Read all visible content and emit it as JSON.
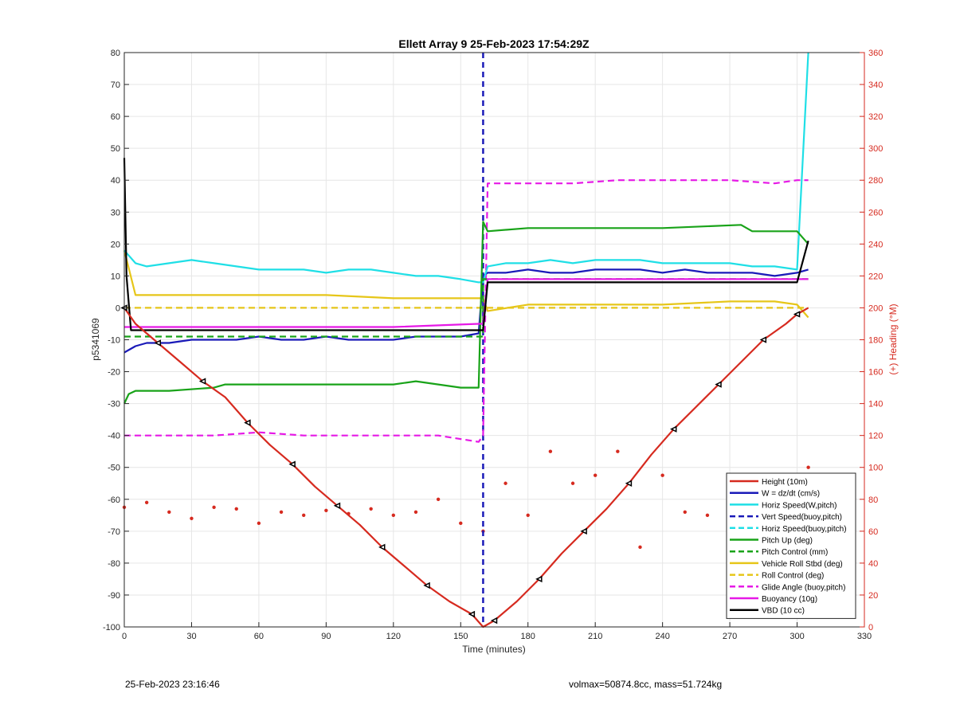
{
  "chart_data": {
    "type": "line",
    "title": "Ellett Array 9 25-Feb-2023 17:54:29Z",
    "xlabel": "Time (minutes)",
    "ylabel": "p5341069",
    "y2label": "(+) Heading (°M)",
    "xlim": [
      0,
      330
    ],
    "ylim": [
      -100,
      80
    ],
    "y2lim": [
      0,
      360
    ],
    "xticks": [
      "0",
      "30",
      "60",
      "90",
      "120",
      "150",
      "180",
      "210",
      "240",
      "270",
      "300",
      "330"
    ],
    "yticks": [
      "-100",
      "-90",
      "-80",
      "-70",
      "-60",
      "-50",
      "-40",
      "-30",
      "-20",
      "-10",
      "0",
      "10",
      "20",
      "30",
      "40",
      "50",
      "60",
      "70",
      "80"
    ],
    "y2ticks": [
      "0",
      "20",
      "40",
      "60",
      "80",
      "100",
      "120",
      "140",
      "160",
      "180",
      "200",
      "220",
      "240",
      "260",
      "280",
      "300",
      "320",
      "340",
      "360"
    ],
    "grid": true,
    "legend_position": "bottom-right",
    "apogee_minutes": 160,
    "colors": {
      "height": "#d62a1f",
      "w": "#1a1ab8",
      "horiz": "#1fdfe6",
      "pitch": "#19a319",
      "roll": "#e6c619",
      "glide": "#e619e6",
      "vbd": "#000000",
      "heading_axis": "#d62a1f"
    },
    "series": [
      {
        "name": "Height (10m)",
        "color": "#d62a1f",
        "style": "solid",
        "x": [
          0,
          5,
          15,
          25,
          35,
          45,
          55,
          65,
          75,
          85,
          95,
          105,
          115,
          125,
          135,
          145,
          155,
          160,
          165,
          175,
          185,
          195,
          205,
          215,
          225,
          235,
          245,
          255,
          265,
          275,
          285,
          295,
          300,
          305
        ],
        "y": [
          0,
          -5,
          -11,
          -17,
          -23,
          -28,
          -36,
          -43,
          -49,
          -56,
          -62,
          -68,
          -75,
          -81,
          -87,
          -92,
          -96,
          -100,
          -98,
          -92,
          -85,
          -77,
          -70,
          -63,
          -55,
          -46,
          -38,
          -31,
          -24,
          -17,
          -10,
          -5,
          -2,
          0
        ]
      },
      {
        "name": "W = dz/dt (cm/s)",
        "color": "#1a1ab8",
        "style": "solid",
        "x": [
          0,
          5,
          10,
          20,
          30,
          40,
          50,
          60,
          70,
          80,
          90,
          100,
          110,
          120,
          130,
          140,
          150,
          158,
          160,
          162,
          170,
          180,
          190,
          200,
          210,
          220,
          230,
          240,
          250,
          260,
          270,
          280,
          290,
          300,
          305
        ],
        "y": [
          -14,
          -12,
          -11,
          -11,
          -10,
          -10,
          -10,
          -9,
          -10,
          -10,
          -9,
          -10,
          -10,
          -10,
          -9,
          -9,
          -9,
          -8,
          10,
          11,
          11,
          12,
          11,
          11,
          12,
          12,
          12,
          11,
          12,
          11,
          11,
          11,
          10,
          11,
          12
        ]
      },
      {
        "name": "Horiz Speed(W,pitch)",
        "color": "#1fdfe6",
        "style": "solid",
        "x": [
          0,
          5,
          10,
          20,
          30,
          40,
          50,
          60,
          70,
          80,
          90,
          100,
          110,
          120,
          130,
          140,
          150,
          158,
          160,
          162,
          170,
          180,
          190,
          200,
          210,
          220,
          230,
          240,
          250,
          260,
          270,
          280,
          290,
          300,
          305
        ],
        "y": [
          18,
          14,
          13,
          14,
          15,
          14,
          13,
          12,
          12,
          12,
          11,
          12,
          12,
          11,
          10,
          10,
          9,
          8,
          8,
          13,
          14,
          14,
          15,
          14,
          15,
          15,
          15,
          14,
          14,
          14,
          14,
          13,
          13,
          12,
          80
        ]
      },
      {
        "name": "Vert Speed(buoy,pitch)",
        "color": "#1a1ab8",
        "style": "dashed",
        "x": [],
        "y": []
      },
      {
        "name": "Horiz Speed(buoy,pitch)",
        "color": "#1fdfe6",
        "style": "dashed",
        "x": [],
        "y": []
      },
      {
        "name": "Pitch Up (deg)",
        "color": "#19a319",
        "style": "solid",
        "x": [
          0,
          2,
          5,
          20,
          40,
          45,
          60,
          80,
          100,
          120,
          130,
          140,
          150,
          158,
          160,
          162,
          180,
          210,
          240,
          275,
          280,
          300,
          305
        ],
        "y": [
          -30,
          -27,
          -26,
          -26,
          -25,
          -24,
          -24,
          -24,
          -24,
          -24,
          -23,
          -24,
          -25,
          -25,
          27,
          24,
          25,
          25,
          25,
          26,
          24,
          24,
          20
        ]
      },
      {
        "name": "Pitch Control (mm)",
        "color": "#19a319",
        "style": "dashed",
        "x": [
          0,
          160,
          160,
          305
        ],
        "y": [
          -9,
          -9,
          9,
          9
        ]
      },
      {
        "name": "Vehicle Roll Stbd (deg)",
        "color": "#e6c619",
        "style": "solid",
        "x": [
          0,
          5,
          10,
          30,
          60,
          90,
          120,
          150,
          158,
          160,
          162,
          180,
          210,
          240,
          270,
          290,
          300,
          305
        ],
        "y": [
          18,
          4,
          4,
          4,
          4,
          4,
          3,
          3,
          3,
          3,
          -1,
          1,
          1,
          1,
          2,
          2,
          1,
          -3
        ]
      },
      {
        "name": "Roll Control (deg)",
        "color": "#e6c619",
        "style": "dashed",
        "x": [
          0,
          160,
          160,
          305
        ],
        "y": [
          0,
          0,
          0,
          0
        ]
      },
      {
        "name": "Glide Angle (buoy,pitch)",
        "color": "#e619e6",
        "style": "dashed",
        "x": [
          0,
          20,
          40,
          60,
          80,
          100,
          120,
          140,
          158,
          160,
          162,
          180,
          200,
          220,
          240,
          260,
          270,
          290,
          300,
          305
        ],
        "y": [
          -40,
          -40,
          -40,
          -39,
          -40,
          -40,
          -40,
          -40,
          -42,
          -40,
          39,
          39,
          39,
          40,
          40,
          40,
          40,
          39,
          40,
          40
        ]
      },
      {
        "name": "Buoyancy (10g)",
        "color": "#e619e6",
        "style": "solid",
        "x": [
          0,
          3,
          60,
          120,
          158,
          160,
          162,
          305
        ],
        "y": [
          -6,
          -6,
          -6,
          -6,
          -5,
          -5,
          9,
          9
        ]
      },
      {
        "name": "VBD (10 cc)",
        "color": "#000000",
        "style": "solid",
        "x": [
          0,
          1,
          3,
          60,
          120,
          158,
          160,
          162,
          300,
          305
        ],
        "y": [
          47,
          10,
          -7,
          -7,
          -7,
          -7,
          -7,
          8,
          8,
          21
        ]
      }
    ],
    "heading_series": {
      "axis": "right",
      "color": "#d62a1f",
      "x": [
        0,
        10,
        20,
        30,
        40,
        50,
        60,
        70,
        80,
        90,
        100,
        110,
        120,
        130,
        140,
        150,
        160,
        170,
        180,
        190,
        200,
        210,
        220,
        230,
        240,
        250,
        260,
        270,
        280,
        290,
        300,
        305
      ],
      "y": [
        75,
        78,
        72,
        68,
        75,
        74,
        65,
        72,
        70,
        73,
        71,
        74,
        70,
        72,
        80,
        65,
        60,
        90,
        70,
        110,
        90,
        95,
        110,
        50,
        95,
        72,
        70,
        73,
        74,
        68,
        62,
        100
      ]
    }
  },
  "footer": {
    "timestamp": "25-Feb-2023 23:16:46",
    "info": "volmax=50874.8cc, mass=51.724kg"
  }
}
